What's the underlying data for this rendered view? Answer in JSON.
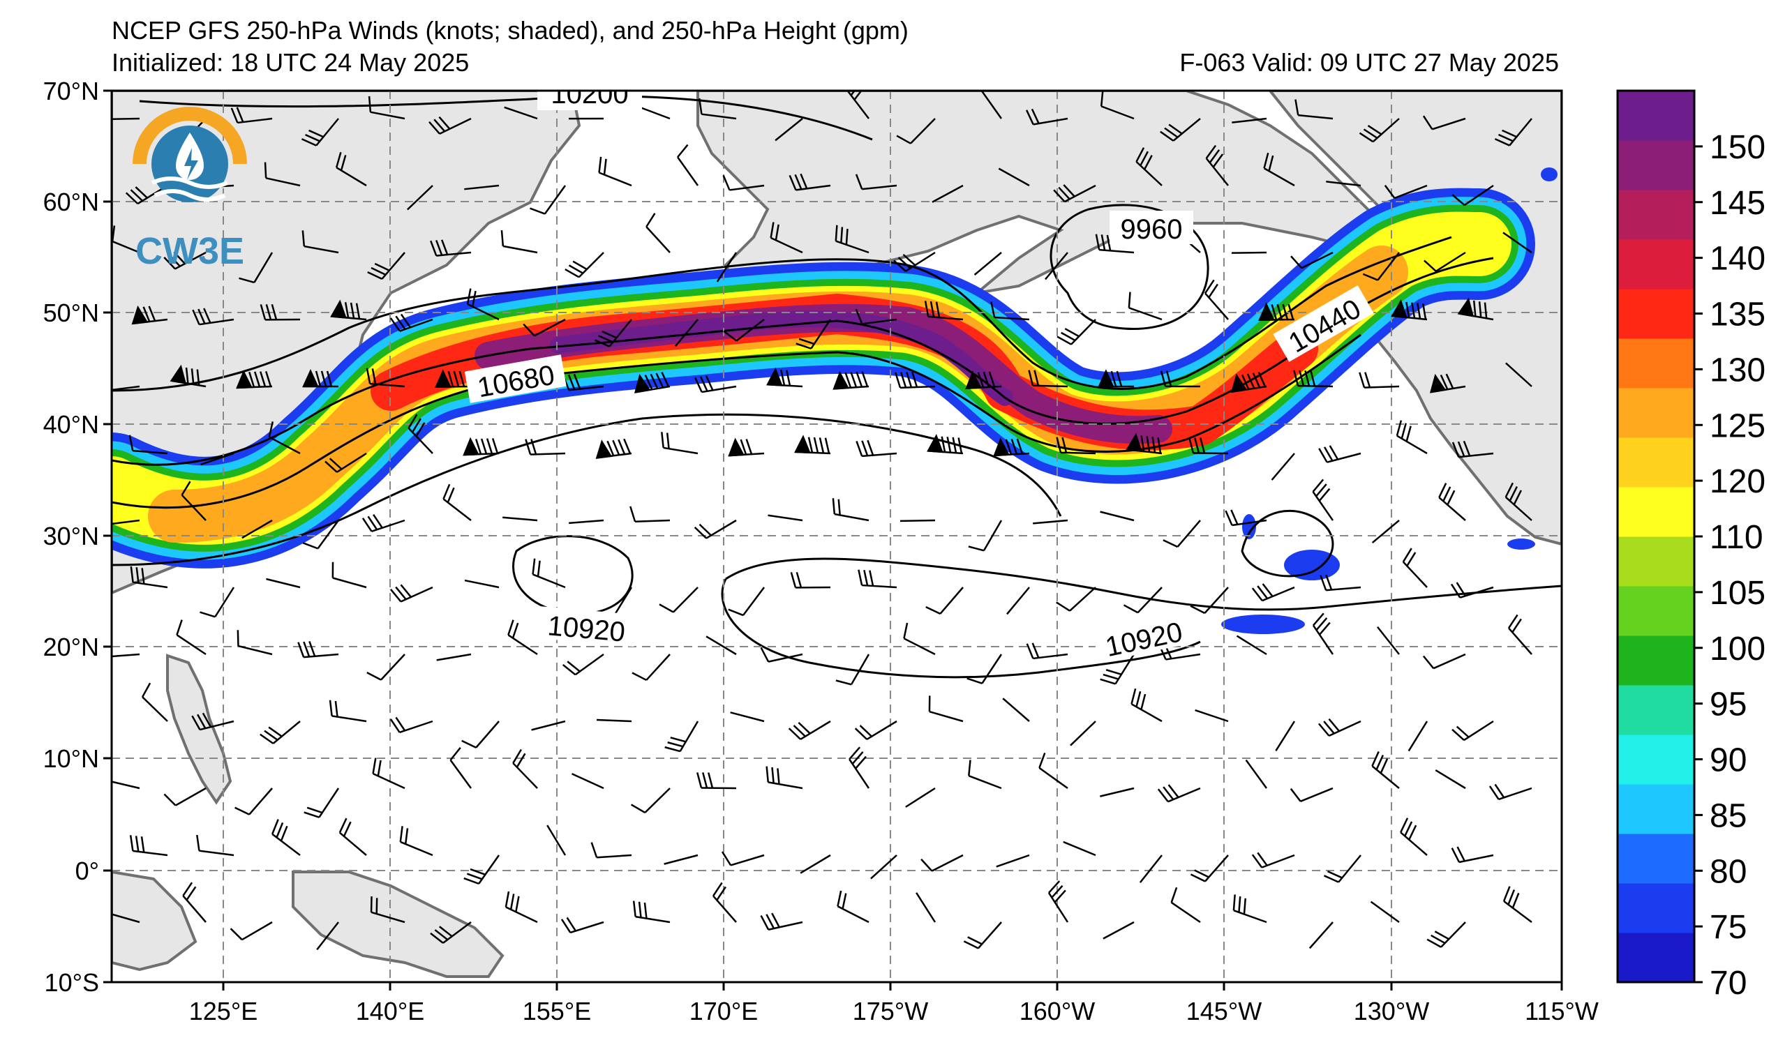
{
  "header": {
    "title": "NCEP GFS 250-hPa Winds (knots; shaded), and 250-hPa Height (gpm)",
    "initialized": "Initialized: 18 UTC 24 May 2025",
    "valid": "F-063  Valid: 09 UTC 27 May 2025"
  },
  "logo": {
    "text": "CW3E"
  },
  "map": {
    "lat_labels": [
      "70°N",
      "60°N",
      "50°N",
      "40°N",
      "30°N",
      "20°N",
      "10°N",
      "0°",
      "10°S"
    ],
    "lon_labels": [
      "125°E",
      "140°E",
      "155°E",
      "170°E",
      "175°W",
      "160°W",
      "145°W",
      "130°W",
      "115°W"
    ],
    "contour_labels": {
      "c10200": "10200",
      "c9960": "9960",
      "c10680": "10680",
      "c10440": "10440",
      "c10920_west": "10920",
      "c10920_east": "10920"
    }
  },
  "colorbar": {
    "ticks": [
      "70",
      "75",
      "80",
      "85",
      "90",
      "95",
      "100",
      "105",
      "110",
      "120",
      "125",
      "130",
      "135",
      "140",
      "145",
      "150"
    ],
    "colors": [
      "#1a1ac8",
      "#1c3cf0",
      "#1e6cff",
      "#1ec8ff",
      "#20f0e8",
      "#20dca0",
      "#1eb41e",
      "#64d21e",
      "#aadc1e",
      "#ffff1e",
      "#ffd21e",
      "#ffaa1e",
      "#ff7814",
      "#ff2814",
      "#dc1e3c",
      "#b41e5a",
      "#8c1e78",
      "#6e1e8c"
    ]
  }
}
